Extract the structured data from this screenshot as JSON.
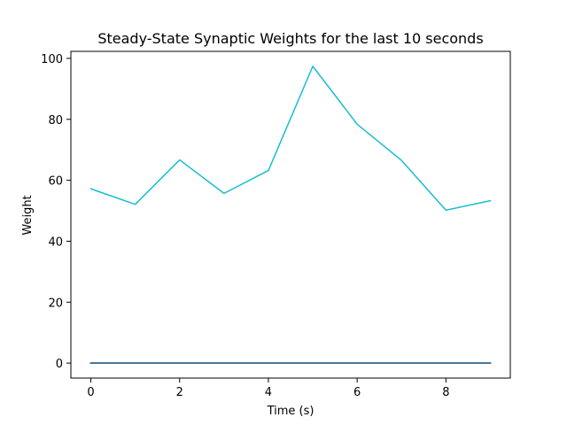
{
  "chart_data": {
    "type": "line",
    "title": "Steady-State Synaptic Weights for the last 10 seconds",
    "xlabel": "Time (s)",
    "ylabel": "Weight",
    "xlim": [
      -0.45,
      9.45
    ],
    "ylim": [
      -4.9,
      102.3
    ],
    "xticks": [
      0,
      2,
      4,
      6,
      8
    ],
    "yticks": [
      0,
      20,
      40,
      60,
      80,
      100
    ],
    "grid": false,
    "legend": "none",
    "x": [
      0,
      1,
      2,
      3,
      4,
      5,
      6,
      7,
      8,
      9
    ],
    "series": [
      {
        "color": "#17becf",
        "values": [
          57.2,
          52.1,
          66.7,
          55.7,
          63.2,
          97.4,
          78.4,
          66.5,
          50.2,
          53.3
        ]
      },
      {
        "color": "#1f77b4",
        "values": [
          0,
          0,
          0,
          0,
          0,
          0,
          0,
          0,
          0,
          0
        ]
      },
      {
        "color": "#ff7f0e",
        "values": [
          0,
          0,
          0,
          0,
          0,
          0,
          0,
          0,
          0,
          0
        ]
      },
      {
        "color": "#2ca02c",
        "values": [
          0,
          0,
          0,
          0,
          0,
          0,
          0,
          0,
          0,
          0
        ]
      },
      {
        "color": "#d62728",
        "values": [
          0,
          0,
          0,
          0,
          0,
          0,
          0,
          0,
          0,
          0
        ]
      },
      {
        "color": "#9467bd",
        "values": [
          0,
          0,
          0,
          0,
          0,
          0,
          0,
          0,
          0,
          0
        ]
      },
      {
        "color": "#8c564b",
        "values": [
          0,
          0,
          0,
          0,
          0,
          0,
          0,
          0,
          0,
          0
        ]
      },
      {
        "color": "#e377c2",
        "values": [
          0,
          0,
          0,
          0,
          0,
          0,
          0,
          0,
          0,
          0
        ]
      },
      {
        "color": "#7f7f7f",
        "values": [
          0,
          0,
          0,
          0,
          0,
          0,
          0,
          0,
          0,
          0
        ]
      },
      {
        "color": "#bcbd22",
        "values": [
          0,
          0,
          0,
          0,
          0,
          0,
          0,
          0,
          0,
          0
        ]
      }
    ]
  }
}
